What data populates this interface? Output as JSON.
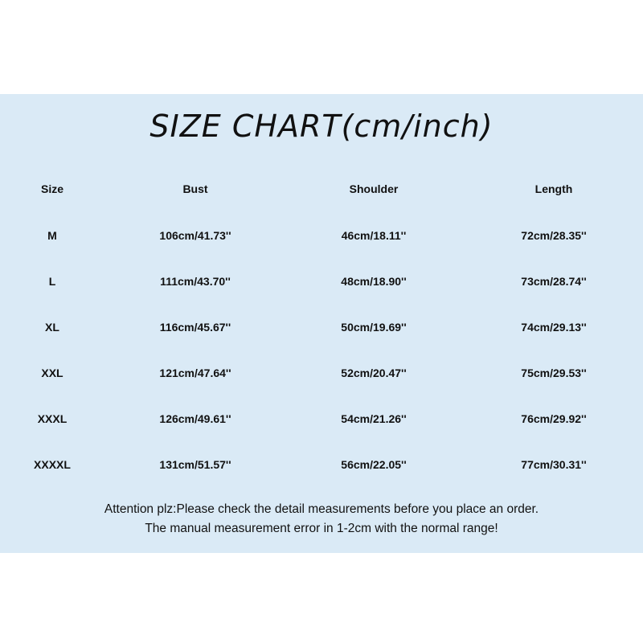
{
  "title": "SIZE CHART(cm/inch)",
  "headers": [
    "Size",
    "Bust",
    "Shoulder",
    "Length"
  ],
  "rows": [
    [
      "M",
      "106cm/41.73''",
      "46cm/18.11''",
      "72cm/28.35''"
    ],
    [
      "L",
      "111cm/43.70''",
      "48cm/18.90''",
      "73cm/28.74''"
    ],
    [
      "XL",
      "116cm/45.67''",
      "50cm/19.69''",
      "74cm/29.13''"
    ],
    [
      "XXL",
      "121cm/47.64''",
      "52cm/20.47''",
      "75cm/29.53''"
    ],
    [
      "XXXL",
      "126cm/49.61''",
      "54cm/21.26''",
      "76cm/29.92''"
    ],
    [
      "XXXXL",
      "131cm/51.57''",
      "56cm/22.05''",
      "77cm/30.31''"
    ]
  ],
  "notes": [
    "Attention plz:Please check the detail measurements before you place an order.",
    "The manual measurement error in 1-2cm with the normal range!"
  ],
  "colors": {
    "panel_background": "#daeaf6",
    "page_background": "#ffffff"
  }
}
